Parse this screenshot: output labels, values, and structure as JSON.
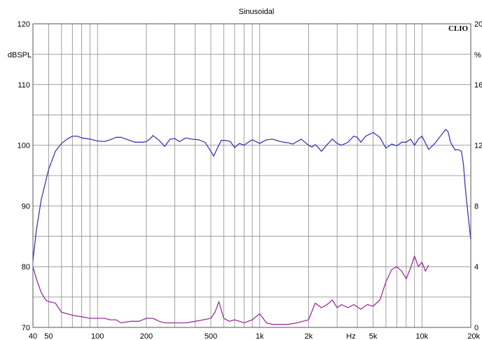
{
  "chart_data": {
    "type": "line",
    "title": "Sinusoidal",
    "brand": "CLIO",
    "left_unit": "dBSPL",
    "right_unit": "%",
    "x_unit": "Hz",
    "x_scale": "log",
    "xlim": [
      40,
      20000
    ],
    "ylim": [
      70,
      120
    ],
    "y2lim": [
      0,
      20
    ],
    "grid": true,
    "y_ticks": [
      {
        "value": 120,
        "label": "120"
      },
      {
        "value": 110,
        "label": "110"
      },
      {
        "value": 100,
        "label": "100"
      },
      {
        "value": 90,
        "label": "90"
      },
      {
        "value": 80,
        "label": "80"
      },
      {
        "value": 70,
        "label": "70"
      }
    ],
    "y2_ticks": [
      {
        "value": 20,
        "label": "20"
      },
      {
        "value": 16,
        "label": "16"
      },
      {
        "value": 12,
        "label": "12"
      },
      {
        "value": 8,
        "label": "8"
      },
      {
        "value": 4,
        "label": "4"
      },
      {
        "value": 0,
        "label": "0"
      }
    ],
    "x_ticks": [
      {
        "value": 40,
        "label": "40"
      },
      {
        "value": 50,
        "label": "50"
      },
      {
        "value": 100,
        "label": "100"
      },
      {
        "value": 200,
        "label": "200"
      },
      {
        "value": 500,
        "label": "500"
      },
      {
        "value": 1000,
        "label": "1k"
      },
      {
        "value": 2000,
        "label": "2k"
      },
      {
        "value": 5000,
        "label": "5k"
      },
      {
        "value": 10000,
        "label": "10k"
      },
      {
        "value": 20000,
        "label": "20k"
      }
    ],
    "series": [
      {
        "axis": "left",
        "color": "#3a3ab4",
        "x": [
          40,
          42,
          45,
          50,
          55,
          60,
          65,
          70,
          75,
          80,
          90,
          100,
          110,
          120,
          130,
          140,
          150,
          170,
          190,
          200,
          210,
          220,
          240,
          260,
          280,
          300,
          320,
          350,
          380,
          420,
          460,
          500,
          520,
          550,
          580,
          620,
          660,
          700,
          750,
          800,
          850,
          900,
          1000,
          1100,
          1200,
          1300,
          1400,
          1500,
          1600,
          1800,
          2000,
          2100,
          2200,
          2300,
          2400,
          2600,
          2800,
          3000,
          3200,
          3500,
          3800,
          4000,
          4200,
          4500,
          5000,
          5500,
          6000,
          6500,
          7000,
          7500,
          8000,
          8500,
          9000,
          9500,
          10000,
          11000,
          12000,
          13000,
          14000,
          14500,
          15000,
          16000,
          16500,
          17000,
          17500,
          18000,
          18500,
          19000,
          19500,
          20000
        ],
        "values": [
          81,
          86,
          91,
          96,
          99,
          100.3,
          101,
          101.5,
          101.5,
          101.2,
          101.0,
          100.7,
          100.6,
          100.9,
          101.3,
          101.3,
          101.0,
          100.5,
          100.5,
          100.6,
          101.0,
          101.6,
          100.8,
          99.8,
          101.0,
          101.1,
          100.6,
          101.2,
          101.0,
          100.9,
          100.5,
          99.0,
          98.2,
          99.6,
          100.8,
          100.8,
          100.6,
          99.6,
          100.3,
          100.0,
          100.5,
          100.9,
          100.3,
          100.9,
          101.0,
          100.7,
          100.5,
          100.4,
          100.2,
          101.0,
          100.0,
          99.7,
          100.1,
          99.6,
          99.0,
          100.1,
          101.0,
          100.3,
          100.0,
          100.5,
          101.5,
          101.3,
          100.5,
          101.5,
          102.1,
          101.3,
          99.5,
          100.2,
          99.9,
          100.5,
          100.5,
          101.0,
          100.0,
          101.0,
          101.5,
          99.3,
          100.3,
          101.5,
          102.6,
          102.2,
          100.5,
          99.2,
          99.3,
          99.2,
          99.0,
          97,
          93,
          90,
          87,
          84.5
        ]
      },
      {
        "axis": "right",
        "color": "#993399",
        "x": [
          40,
          42,
          45,
          48,
          50,
          55,
          60,
          70,
          80,
          90,
          100,
          110,
          120,
          130,
          140,
          160,
          180,
          200,
          220,
          240,
          260,
          280,
          300,
          350,
          400,
          450,
          500,
          530,
          560,
          600,
          650,
          700,
          750,
          800,
          900,
          1000,
          1100,
          1200,
          1300,
          1500,
          1700,
          2000,
          2200,
          2400,
          2600,
          2800,
          3000,
          3200,
          3500,
          3800,
          4200,
          4600,
          5000,
          5500,
          6000,
          6500,
          7000,
          7500,
          8000,
          8500,
          9000,
          9500,
          10000,
          10500,
          11000
        ],
        "values": [
          4.0,
          3.2,
          2.3,
          1.8,
          1.7,
          1.6,
          1.0,
          0.8,
          0.7,
          0.6,
          0.6,
          0.6,
          0.5,
          0.5,
          0.3,
          0.4,
          0.4,
          0.6,
          0.6,
          0.4,
          0.3,
          0.3,
          0.3,
          0.3,
          0.4,
          0.5,
          0.6,
          1.0,
          1.7,
          0.6,
          0.4,
          0.5,
          0.4,
          0.3,
          0.5,
          0.9,
          0.3,
          0.2,
          0.2,
          0.2,
          0.3,
          0.5,
          1.6,
          1.3,
          1.5,
          1.8,
          1.3,
          1.5,
          1.3,
          1.5,
          1.2,
          1.5,
          1.4,
          1.8,
          3.0,
          3.8,
          4.0,
          3.7,
          3.2,
          3.9,
          4.7,
          4.0,
          4.3,
          3.7,
          4.1
        ]
      }
    ]
  }
}
